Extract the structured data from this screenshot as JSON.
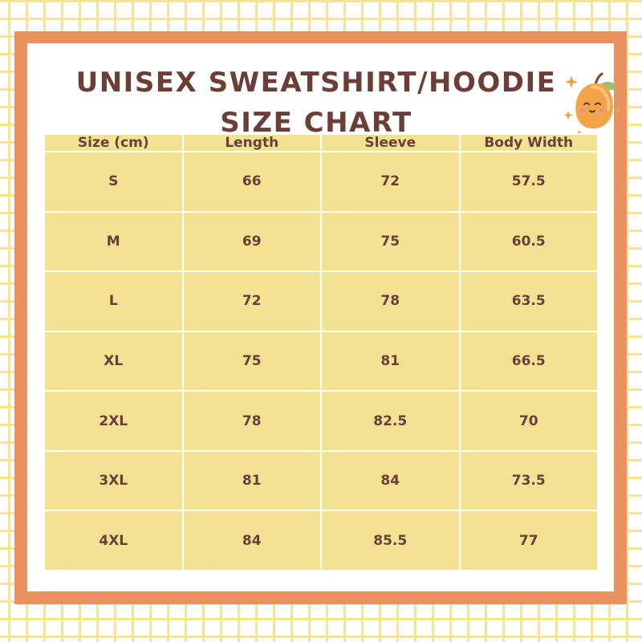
{
  "title": {
    "line1": "UNISEX SWEATSHIRT/HOODIE",
    "line2": "SIZE CHART"
  },
  "table": {
    "headers": [
      "Size (cm)",
      "Length",
      "Sleeve",
      "Body Width"
    ],
    "rows": [
      [
        "S",
        "66",
        "72",
        "57.5"
      ],
      [
        "M",
        "69",
        "75",
        "60.5"
      ],
      [
        "L",
        "72",
        "78",
        "63.5"
      ],
      [
        "XL",
        "75",
        "81",
        "66.5"
      ],
      [
        "2XL",
        "78",
        "82.5",
        "70"
      ],
      [
        "3XL",
        "81",
        "84",
        "73.5"
      ],
      [
        "4XL",
        "84",
        "85.5",
        "77"
      ]
    ]
  },
  "mascot": {
    "icon": "mango-mascot-icon"
  },
  "colors": {
    "frame": "#e9915f",
    "cell": "#f3e293",
    "text": "#6b3f37",
    "grid": "#f4e49a"
  }
}
